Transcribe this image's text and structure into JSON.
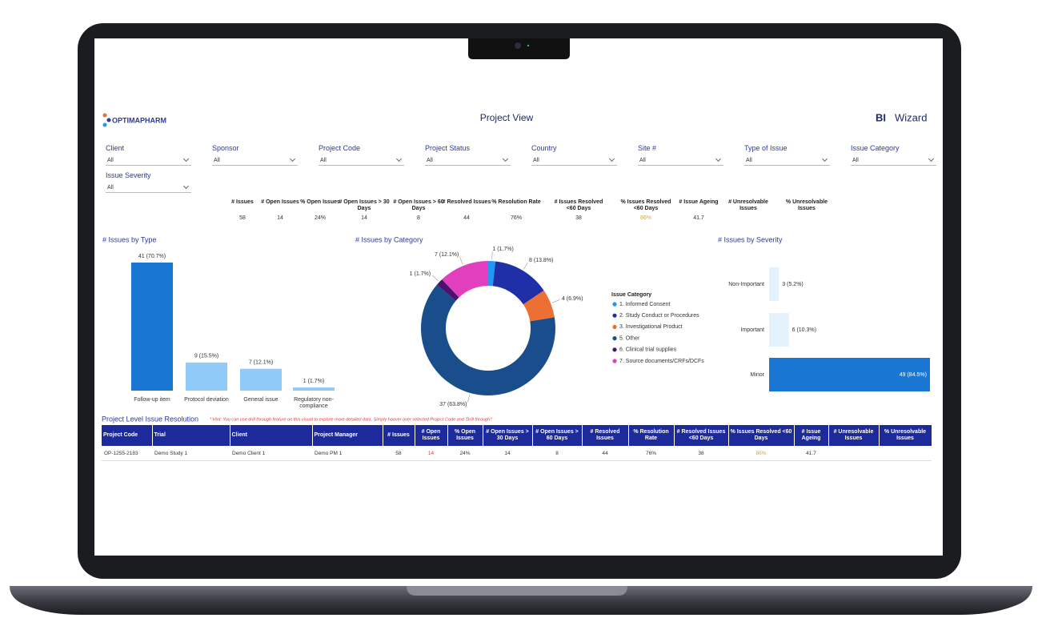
{
  "header": {
    "logo": "OPTIMAPHARM",
    "title": "Project View",
    "brand_bi": "BI",
    "brand_wizard": "Wizard"
  },
  "filters": [
    {
      "label": "Client",
      "value": "All"
    },
    {
      "label": "Sponsor",
      "value": "All"
    },
    {
      "label": "Project Code",
      "value": "All"
    },
    {
      "label": "Project Status",
      "value": "All"
    },
    {
      "label": "Country",
      "value": "All"
    },
    {
      "label": "Site #",
      "value": "All"
    },
    {
      "label": "Type of Issue",
      "value": "All"
    },
    {
      "label": "Issue Category",
      "value": "All"
    },
    {
      "label": "Issue Severity",
      "value": "All"
    }
  ],
  "kpis": [
    {
      "label": "# Issues",
      "value": "58"
    },
    {
      "label": "# Open Issues",
      "value": "14"
    },
    {
      "label": "% Open Issues",
      "value": "24%"
    },
    {
      "label": "# Open Issues > 30 Days",
      "value": "14"
    },
    {
      "label": "# Open Issues > 60 Days",
      "value": "8"
    },
    {
      "label": "# Resolved Issues",
      "value": "44"
    },
    {
      "label": "% Resolution Rate",
      "value": "76%"
    },
    {
      "label": "# Issues Resolved <60 Days",
      "value": "38"
    },
    {
      "label": "% Issues Resolved <60 Days",
      "value": "86%"
    },
    {
      "label": "# Issue Ageing",
      "value": "41.7"
    },
    {
      "label": "# Unresolvable Issues"
    },
    {
      "label": "% Unresolvable Issues"
    }
  ],
  "chart_data": [
    {
      "type": "bar",
      "title": "# Issues by Type",
      "categories": [
        "Follow-up item",
        "Protocol deviation",
        "General issue",
        "Regulatory non-compliance"
      ],
      "values": [
        41,
        9,
        7,
        1
      ],
      "value_labels": [
        "41 (70.7%)",
        "9 (15.5%)",
        "7 (12.1%)",
        "1 (1.7%)"
      ],
      "colors": [
        "#1976d2",
        "#90caf9",
        "#90caf9",
        "#90caf9"
      ]
    },
    {
      "type": "donut",
      "title": "# Issues by Category",
      "legend_title": "Issue Category",
      "categories": [
        "1. Informed Consent",
        "2. Study Conduct or Procedures",
        "3. Investigational Product",
        "5. Other",
        "6. Clinical trial supplies",
        "7. Source documents/CRFs/DCFs"
      ],
      "values": [
        1,
        8,
        4,
        37,
        1,
        7
      ],
      "value_labels": [
        "1 (1.7%)",
        "8 (13.8%)",
        "4 (6.9%)",
        "37 (63.8%)",
        "1 (1.7%)",
        "7 (12.1%)"
      ],
      "colors": [
        "#2196f3",
        "#1f2fa8",
        "#ec6f33",
        "#1a4d8c",
        "#4b1070",
        "#e23fbf"
      ]
    },
    {
      "type": "hbar",
      "title": "# Issues by Severity",
      "categories": [
        "Non-Important",
        "Important",
        "Minor"
      ],
      "values": [
        3,
        6,
        49
      ],
      "value_labels": [
        "3 (5.2%)",
        "6 (10.3%)",
        "49 (84.5%)"
      ],
      "colors": [
        "#e3f2fd",
        "#e3f2fd",
        "#1976d2"
      ]
    }
  ],
  "table": {
    "title": "Project Level Issue Resolution",
    "hint": "* Hint: You can use drill through feature on this visual to explore more detailed data. Simply hoover over selected Project Code and 'Drill through'!",
    "columns": [
      "Project Code",
      "Trial",
      "Client",
      "Project Manager",
      "# Issues",
      "# Open Issues",
      "% Open Issues",
      "# Open Issues > 30 Days",
      "# Open Issues > 60 Days",
      "# Resolved Issues",
      "% Resolution Rate",
      "# Resolved Issues <60 Days",
      "% Issues Resolved <60 Days",
      "# Issue Ageing",
      "# Unresolvable Issues",
      "% Unresolvable Issues"
    ],
    "rows": [
      [
        "OP-1255-2183",
        "Demo Study 1",
        "Demo Client 1",
        "Demo PM 1",
        "58",
        "14",
        "24%",
        "14",
        "8",
        "44",
        "76%",
        "38",
        "86%",
        "41.7"
      ]
    ]
  }
}
